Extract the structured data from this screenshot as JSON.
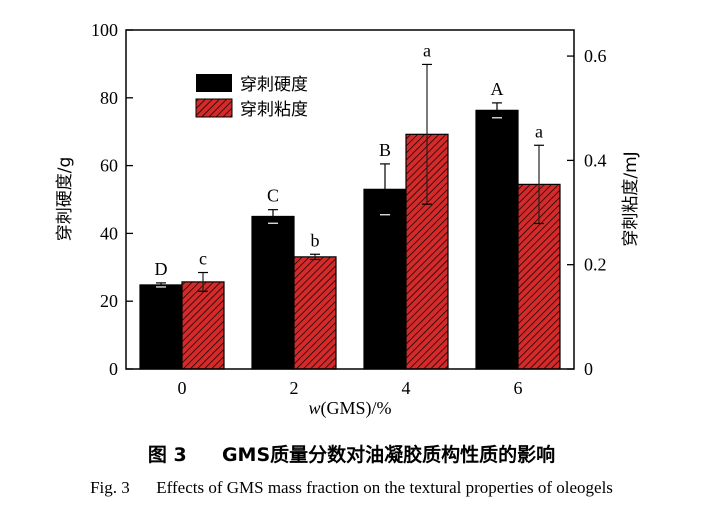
{
  "chart_data": {
    "type": "bar",
    "categories": [
      "0",
      "2",
      "4",
      "6"
    ],
    "xlabel_prefix": "w",
    "xlabel_suffix": "(GMS)/%",
    "ylabel_left": "穿刺硬度/g",
    "ylabel_right": "穿刺粘度/mJ",
    "ylim_left": [
      0,
      100
    ],
    "ylim_right": [
      0,
      0.65
    ],
    "yticks_left": [
      0,
      20,
      40,
      60,
      80,
      100
    ],
    "yticks_right": [
      0,
      0.2,
      0.4,
      0.6
    ],
    "ytick_labels_right": [
      "0",
      "0.2",
      "0.4",
      "0.6"
    ],
    "legend_position": "top-left",
    "series": [
      {
        "name": "穿刺硬度",
        "axis": "left",
        "color": "#000000",
        "values": [
          24.8,
          45.0,
          53.0,
          76.3
        ],
        "errors": [
          0.6,
          2.0,
          7.5,
          2.2
        ],
        "letters": [
          "D",
          "C",
          "B",
          "A"
        ]
      },
      {
        "name": "穿刺粘度",
        "axis": "right",
        "color": "#d42a2a",
        "pattern": "diagonal-hatch",
        "values": [
          0.167,
          0.215,
          0.45,
          0.354
        ],
        "errors": [
          0.018,
          0.005,
          0.134,
          0.075
        ],
        "letters": [
          "c",
          "b",
          "a",
          "a"
        ]
      }
    ]
  },
  "caption": {
    "cn_label": "图 3",
    "cn_text": "GMS质量分数对油凝胶质构性质的影响",
    "en_label": "Fig. 3",
    "en_text": "Effects of GMS mass fraction on the textural properties of oleogels"
  }
}
